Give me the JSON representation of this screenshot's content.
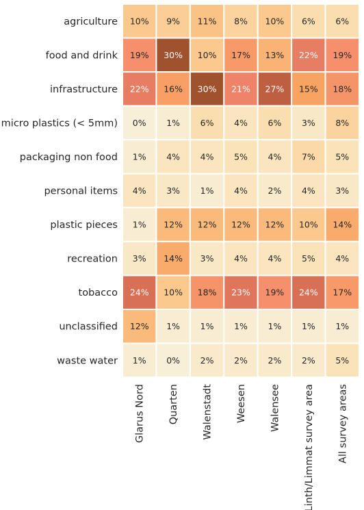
{
  "chart_data": {
    "type": "heatmap",
    "title": "",
    "xlabel": "",
    "ylabel": "",
    "rows": [
      "agriculture",
      "food and drink",
      "infrastructure",
      "micro plastics (< 5mm)",
      "packaging non food",
      "personal items",
      "plastic pieces",
      "recreation",
      "tobacco",
      "unclassified",
      "waste water"
    ],
    "columns": [
      "Glarus Nord",
      "Quarten",
      "Walenstadt",
      "Weesen",
      "Walensee",
      "Linth/Limmat survey area",
      "All survey areas"
    ],
    "values": [
      [
        10,
        9,
        11,
        8,
        10,
        6,
        6
      ],
      [
        19,
        30,
        10,
        17,
        13,
        22,
        19
      ],
      [
        22,
        16,
        30,
        21,
        27,
        15,
        18
      ],
      [
        0,
        1,
        6,
        4,
        6,
        3,
        8
      ],
      [
        1,
        4,
        4,
        5,
        4,
        7,
        5
      ],
      [
        4,
        3,
        1,
        4,
        2,
        4,
        3
      ],
      [
        1,
        12,
        12,
        12,
        12,
        10,
        14
      ],
      [
        3,
        14,
        3,
        4,
        4,
        5,
        4
      ],
      [
        24,
        10,
        18,
        23,
        19,
        24,
        17
      ],
      [
        12,
        1,
        1,
        1,
        1,
        1,
        1
      ],
      [
        1,
        0,
        2,
        2,
        2,
        2,
        5
      ]
    ],
    "value_format": "{v}%",
    "color_scale": [
      "#f7efd8",
      "#fbe3b9",
      "#fbc98e",
      "#f7a462",
      "#f68a6e",
      "#d0694f",
      "#a0522d"
    ],
    "colorbar": false,
    "grid": false
  }
}
